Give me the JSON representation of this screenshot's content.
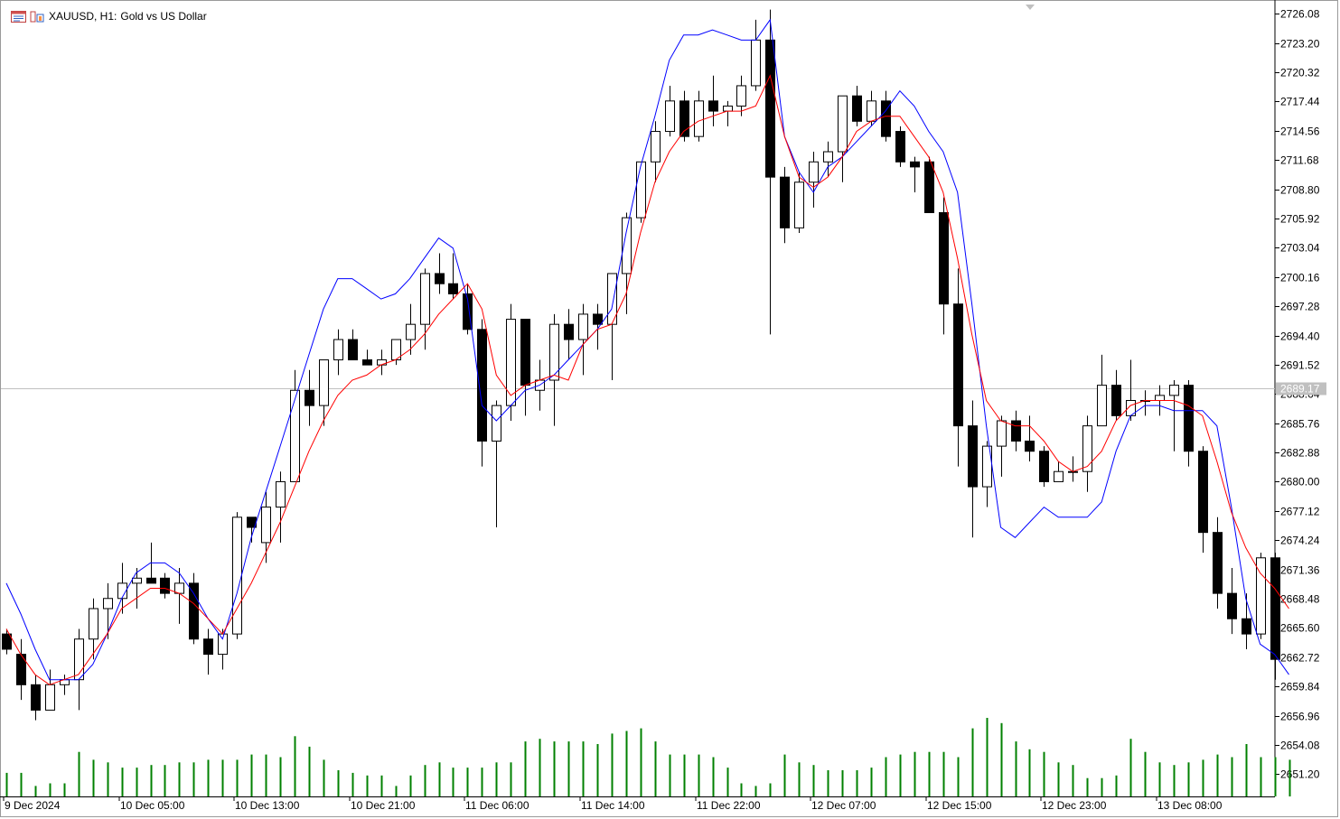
{
  "header": {
    "symbol": "XAUUSD, H1:",
    "description": "Gold vs US Dollar",
    "icons": [
      "chart-window-icon",
      "bar-chart-icon"
    ]
  },
  "colors": {
    "background": "#ffffff",
    "bull_body": "#ffffff",
    "bear_body": "#000000",
    "candle_outline": "#000000",
    "ma_fast": "#ff0000",
    "ma_slow": "#0000ff",
    "volume": "#008000",
    "price_line": "#c0c0c0",
    "price_label_bg": "#c0c0c0"
  },
  "chart_data": {
    "type": "candlestick",
    "symbol": "XAUUSD",
    "timeframe": "H1",
    "ylim": [
      2649.0,
      2727.0
    ],
    "y_ticks": [
      "2726.08",
      "2723.20",
      "2720.32",
      "2717.44",
      "2714.56",
      "2711.68",
      "2708.80",
      "2705.92",
      "2703.04",
      "2700.16",
      "2697.28",
      "2694.40",
      "2691.52",
      "2688.64",
      "2685.76",
      "2682.88",
      "2680.00",
      "2677.12",
      "2674.24",
      "2671.36",
      "2668.48",
      "2665.60",
      "2662.72",
      "2659.84",
      "2656.96",
      "2654.08",
      "2651.20"
    ],
    "x_ticks": [
      {
        "label": "9 Dec 2024",
        "bar": 0
      },
      {
        "label": "10 Dec 05:00",
        "bar": 8
      },
      {
        "label": "10 Dec 13:00",
        "bar": 16
      },
      {
        "label": "10 Dec 21:00",
        "bar": 24
      },
      {
        "label": "11 Dec 06:00",
        "bar": 32
      },
      {
        "label": "11 Dec 14:00",
        "bar": 40
      },
      {
        "label": "11 Dec 22:00",
        "bar": 48
      },
      {
        "label": "12 Dec 07:00",
        "bar": 56
      },
      {
        "label": "12 Dec 15:00",
        "bar": 64
      },
      {
        "label": "12 Dec 23:00",
        "bar": 72
      },
      {
        "label": "13 Dec 08:00",
        "bar": 80
      }
    ],
    "current_price": "2689.17",
    "ohlc": [
      [
        2665.0,
        2665.5,
        2663.0,
        2663.5
      ],
      [
        2663.0,
        2664.5,
        2658.5,
        2660.0
      ],
      [
        2660.0,
        2661.0,
        2656.5,
        2657.5
      ],
      [
        2657.5,
        2661.5,
        2657.5,
        2660.0
      ],
      [
        2660.0,
        2661.0,
        2659.0,
        2660.5
      ],
      [
        2660.5,
        2665.5,
        2657.5,
        2664.5
      ],
      [
        2664.5,
        2668.5,
        2662.5,
        2667.5
      ],
      [
        2667.5,
        2670.0,
        2664.5,
        2668.5
      ],
      [
        2668.5,
        2672.0,
        2667.0,
        2670.0
      ],
      [
        2670.0,
        2671.5,
        2667.5,
        2670.5
      ],
      [
        2670.5,
        2674.0,
        2670.0,
        2670.0
      ],
      [
        2670.5,
        2671.0,
        2668.5,
        2669.0
      ],
      [
        2669.0,
        2671.5,
        2666.0,
        2670.0
      ],
      [
        2670.0,
        2671.0,
        2664.0,
        2664.5
      ],
      [
        2664.5,
        2665.5,
        2661.0,
        2663.0
      ],
      [
        2663.0,
        2665.5,
        2661.5,
        2665.0
      ],
      [
        2665.0,
        2677.0,
        2664.5,
        2676.5
      ],
      [
        2676.5,
        2676.5,
        2674.0,
        2675.5
      ],
      [
        2674.0,
        2679.0,
        2672.0,
        2677.5
      ],
      [
        2677.5,
        2681.0,
        2674.0,
        2680.0
      ],
      [
        2680.0,
        2691.0,
        2680.0,
        2689.0
      ],
      [
        2689.0,
        2691.0,
        2685.5,
        2687.5
      ],
      [
        2687.5,
        2692.0,
        2685.5,
        2692.0
      ],
      [
        2692.0,
        2695.0,
        2690.5,
        2694.0
      ],
      [
        2694.0,
        2695.0,
        2692.0,
        2692.0
      ],
      [
        2692.0,
        2693.0,
        2691.5,
        2691.5
      ],
      [
        2691.5,
        2693.0,
        2690.5,
        2692.0
      ],
      [
        2692.0,
        2694.0,
        2691.5,
        2694.0
      ],
      [
        2694.0,
        2697.5,
        2692.5,
        2695.5
      ],
      [
        2695.5,
        2701.0,
        2693.0,
        2700.5
      ],
      [
        2700.5,
        2702.5,
        2698.5,
        2699.5
      ],
      [
        2699.5,
        2702.5,
        2698.0,
        2698.5
      ],
      [
        2698.5,
        2699.5,
        2694.5,
        2695.0
      ],
      [
        2695.0,
        2696.0,
        2681.5,
        2684.0
      ],
      [
        2684.0,
        2688.0,
        2675.5,
        2687.5
      ],
      [
        2687.5,
        2697.5,
        2686.0,
        2696.0
      ],
      [
        2696.0,
        2696.0,
        2686.5,
        2689.5
      ],
      [
        2689.0,
        2692.0,
        2687.0,
        2690.0
      ],
      [
        2690.0,
        2696.5,
        2685.5,
        2695.5
      ],
      [
        2695.5,
        2697.0,
        2692.0,
        2694.0
      ],
      [
        2694.0,
        2697.5,
        2690.5,
        2696.5
      ],
      [
        2696.5,
        2697.5,
        2693.0,
        2695.5
      ],
      [
        2695.5,
        2700.5,
        2690.0,
        2700.5
      ],
      [
        2700.5,
        2706.5,
        2696.5,
        2706.0
      ],
      [
        2706.0,
        2711.5,
        2705.5,
        2711.5
      ],
      [
        2711.5,
        2715.5,
        2709.5,
        2714.5
      ],
      [
        2714.5,
        2719.0,
        2714.0,
        2717.5
      ],
      [
        2717.5,
        2718.5,
        2713.5,
        2714.0
      ],
      [
        2714.0,
        2718.5,
        2713.5,
        2717.5
      ],
      [
        2717.5,
        2720.0,
        2715.0,
        2716.5
      ],
      [
        2716.5,
        2717.5,
        2715.0,
        2717.0
      ],
      [
        2717.0,
        2720.0,
        2716.0,
        2719.0
      ],
      [
        2719.0,
        2725.5,
        2718.5,
        2723.5
      ],
      [
        2723.5,
        2726.5,
        2694.5,
        2710.0
      ],
      [
        2710.0,
        2711.0,
        2703.5,
        2705.0
      ],
      [
        2705.0,
        2710.5,
        2704.5,
        2709.5
      ],
      [
        2709.5,
        2712.5,
        2707.0,
        2711.5
      ],
      [
        2711.5,
        2713.5,
        2710.0,
        2712.5
      ],
      [
        2712.5,
        2718.0,
        2709.5,
        2718.0
      ],
      [
        2718.0,
        2719.0,
        2715.0,
        2715.5
      ],
      [
        2715.5,
        2718.5,
        2715.0,
        2717.5
      ],
      [
        2717.5,
        2718.5,
        2713.5,
        2714.0
      ],
      [
        2714.5,
        2715.0,
        2711.0,
        2711.5
      ],
      [
        2711.5,
        2712.0,
        2708.5,
        2711.0
      ],
      [
        2711.5,
        2712.0,
        2707.0,
        2706.5
      ],
      [
        2706.5,
        2708.0,
        2694.5,
        2697.5
      ],
      [
        2697.5,
        2701.0,
        2681.5,
        2685.5
      ],
      [
        2685.5,
        2688.0,
        2674.5,
        2679.5
      ],
      [
        2679.5,
        2684.0,
        2677.5,
        2683.5
      ],
      [
        2683.5,
        2686.5,
        2680.5,
        2686.0
      ],
      [
        2686.0,
        2687.0,
        2683.0,
        2684.0
      ],
      [
        2684.0,
        2686.5,
        2682.0,
        2683.0
      ],
      [
        2683.0,
        2683.5,
        2679.5,
        2680.0
      ],
      [
        2680.0,
        2682.0,
        2680.0,
        2681.0
      ],
      [
        2681.0,
        2682.5,
        2680.0,
        2681.0
      ],
      [
        2681.0,
        2686.5,
        2679.0,
        2685.5
      ],
      [
        2685.5,
        2692.5,
        2685.5,
        2689.5
      ],
      [
        2689.5,
        2691.0,
        2686.0,
        2686.5
      ],
      [
        2686.5,
        2692.0,
        2686.0,
        2688.0
      ],
      [
        2688.0,
        2689.0,
        2686.5,
        2688.0
      ],
      [
        2688.0,
        2689.5,
        2686.5,
        2688.5
      ],
      [
        2688.5,
        2690.0,
        2683.0,
        2689.5
      ],
      [
        2689.5,
        2690.0,
        2681.5,
        2683.0
      ],
      [
        2683.0,
        2683.5,
        2673.0,
        2675.0
      ],
      [
        2675.0,
        2676.5,
        2667.5,
        2669.0
      ],
      [
        2669.0,
        2671.5,
        2665.0,
        2666.5
      ],
      [
        2666.5,
        2669.0,
        2663.5,
        2665.0
      ],
      [
        2665.0,
        2673.0,
        2664.5,
        2672.5
      ],
      [
        2672.5,
        2673.0,
        2660.5,
        2662.5
      ]
    ],
    "ma_fast": [
      2665.5,
      2663.0,
      2661.0,
      2660.0,
      2660.5,
      2661.0,
      2663.0,
      2665.0,
      2667.5,
      2668.5,
      2669.5,
      2669.5,
      2669.0,
      2668.0,
      2666.5,
      2665.0,
      2667.5,
      2670.0,
      2673.0,
      2676.0,
      2679.5,
      2683.0,
      2686.0,
      2688.5,
      2690.0,
      2690.5,
      2691.5,
      2692.0,
      2693.0,
      2694.5,
      2696.5,
      2698.0,
      2699.5,
      2697.0,
      2690.5,
      2688.5,
      2689.5,
      2690.0,
      2690.5,
      2690.0,
      2693.5,
      2695.0,
      2695.5,
      2698.5,
      2704.5,
      2709.5,
      2712.5,
      2714.5,
      2715.5,
      2716.0,
      2716.5,
      2716.5,
      2717.0,
      2720.0,
      2714.0,
      2710.0,
      2709.0,
      2710.0,
      2712.0,
      2714.5,
      2715.5,
      2716.0,
      2716.0,
      2714.0,
      2712.0,
      2708.5,
      2702.0,
      2694.5,
      2688.0,
      2686.0,
      2685.5,
      2685.5,
      2684.0,
      2682.0,
      2681.0,
      2681.5,
      2683.0,
      2686.0,
      2687.5,
      2688.0,
      2688.0,
      2688.0,
      2687.5,
      2686.5,
      2682.0,
      2677.0,
      2673.5,
      2671.0,
      2669.5,
      2667.5
    ],
    "ma_slow": [
      2670.0,
      2667.0,
      2663.5,
      2660.5,
      2660.5,
      2660.5,
      2662.0,
      2665.0,
      2668.5,
      2671.0,
      2672.0,
      2672.0,
      2671.0,
      2669.0,
      2666.5,
      2664.5,
      2669.0,
      2674.5,
      2679.0,
      2683.5,
      2688.0,
      2692.5,
      2697.0,
      2700.0,
      2700.0,
      2699.0,
      2698.0,
      2698.5,
      2700.0,
      2702.0,
      2704.0,
      2703.0,
      2698.0,
      2687.5,
      2686.0,
      2687.5,
      2689.0,
      2689.5,
      2690.5,
      2692.0,
      2693.5,
      2695.0,
      2697.0,
      2704.5,
      2711.0,
      2716.0,
      2721.5,
      2724.0,
      2724.0,
      2724.5,
      2724.0,
      2723.5,
      2723.5,
      2725.5,
      2714.0,
      2710.5,
      2708.5,
      2711.0,
      2712.0,
      2713.5,
      2715.0,
      2716.5,
      2718.5,
      2717.0,
      2714.5,
      2712.5,
      2708.5,
      2697.5,
      2685.5,
      2675.5,
      2674.5,
      2676.0,
      2677.5,
      2676.5,
      2676.5,
      2676.5,
      2678.0,
      2683.0,
      2686.5,
      2687.5,
      2687.5,
      2687.0,
      2687.0,
      2687.0,
      2685.5,
      2677.5,
      2668.5,
      2664.0,
      2663.0,
      2661.0
    ],
    "volume": [
      9,
      9,
      4,
      5,
      5,
      17,
      14,
      13,
      11,
      11,
      12,
      12,
      13,
      13,
      14,
      14,
      14,
      16,
      16,
      15,
      23,
      19,
      14,
      10,
      9,
      8,
      8,
      4,
      8,
      12,
      13,
      11,
      11,
      11,
      13,
      13,
      21,
      22,
      21,
      21,
      21,
      20,
      24,
      25,
      26,
      21,
      16,
      16,
      16,
      15,
      11,
      5,
      4,
      5,
      16,
      13,
      12,
      10,
      10,
      10,
      11,
      15,
      16,
      17,
      17,
      17,
      15,
      26,
      30,
      28,
      21,
      18,
      17,
      13,
      12,
      7,
      7,
      8,
      22,
      17,
      13,
      12,
      13,
      14,
      16,
      15,
      20,
      15,
      15,
      14
    ]
  }
}
